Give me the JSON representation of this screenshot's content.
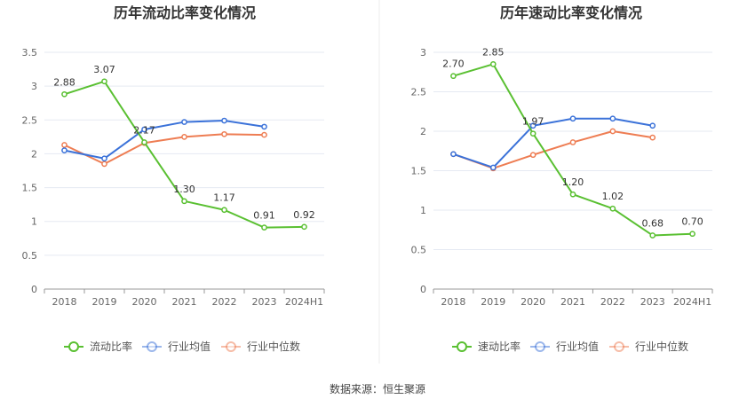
{
  "source": "数据来源：恒生聚源",
  "colors": {
    "main": "#5ac032",
    "avg": "#3b72d9",
    "median": "#ee7d53",
    "grid": "#e5e9f2",
    "axis": "#999999"
  },
  "chart_data": [
    {
      "type": "line",
      "title": "历年流动比率变化情况",
      "categories": [
        "2018",
        "2019",
        "2020",
        "2021",
        "2022",
        "2023",
        "2024H1"
      ],
      "ylim": [
        0,
        3.5
      ],
      "yticks": [
        "0",
        "0.5",
        "1",
        "1.5",
        "2",
        "2.5",
        "3",
        "3.5"
      ],
      "grid": true,
      "legend_position": "bottom",
      "series": [
        {
          "name": "流动比率",
          "values": [
            2.88,
            3.07,
            2.17,
            1.3,
            1.17,
            0.91,
            0.92
          ],
          "labels": [
            "2.88",
            "3.07",
            "2.17",
            "1.30",
            "1.17",
            "0.91",
            "0.92"
          ]
        },
        {
          "name": "行业均值",
          "values": [
            2.05,
            1.93,
            2.36,
            2.47,
            2.49,
            2.4,
            null
          ]
        },
        {
          "name": "行业中位数",
          "values": [
            2.13,
            1.85,
            2.16,
            2.25,
            2.29,
            2.28,
            null
          ]
        }
      ]
    },
    {
      "type": "line",
      "title": "历年速动比率变化情况",
      "categories": [
        "2018",
        "2019",
        "2020",
        "2021",
        "2022",
        "2023",
        "2024H1"
      ],
      "ylim": [
        0,
        3
      ],
      "yticks": [
        "0",
        "0.5",
        "1",
        "1.5",
        "2",
        "2.5",
        "3"
      ],
      "grid": true,
      "legend_position": "bottom",
      "series": [
        {
          "name": "速动比率",
          "values": [
            2.7,
            2.85,
            1.97,
            1.2,
            1.02,
            0.68,
            0.7
          ],
          "labels": [
            "2.70",
            "2.85",
            "1.97",
            "1.20",
            "1.02",
            "0.68",
            "0.70"
          ]
        },
        {
          "name": "行业均值",
          "values": [
            1.71,
            1.54,
            2.07,
            2.16,
            2.16,
            2.07,
            null
          ]
        },
        {
          "name": "行业中位数",
          "values": [
            1.71,
            1.53,
            1.7,
            1.86,
            2.0,
            1.92,
            null
          ]
        }
      ]
    }
  ]
}
